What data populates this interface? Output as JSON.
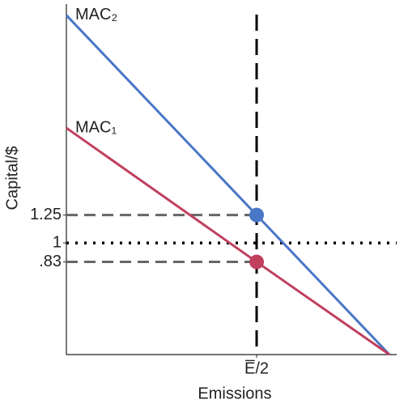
{
  "chart_data": {
    "type": "line",
    "x_label": "Emissions",
    "y_label": "Capital/$",
    "series": [
      {
        "name": "MAC₂",
        "color": "#4a76c8",
        "x": [
          0,
          57.6,
          97.8
        ],
        "values": [
          3.04,
          1.25,
          0
        ]
      },
      {
        "name": "MAC₁",
        "color": "#c0405e",
        "x": [
          0,
          57.6,
          97.8
        ],
        "values": [
          2.03,
          0.83,
          0
        ]
      }
    ],
    "xlim": [
      0,
      100
    ],
    "ylim": [
      0,
      3.14
    ],
    "xticks": [
      {
        "value": 57.6,
        "label": "E̅/2"
      }
    ],
    "yticks": [
      1.25,
      1,
      {
        "value": 0.83,
        "label": ".83"
      }
    ],
    "vline": 57.6,
    "hline": 1
  }
}
